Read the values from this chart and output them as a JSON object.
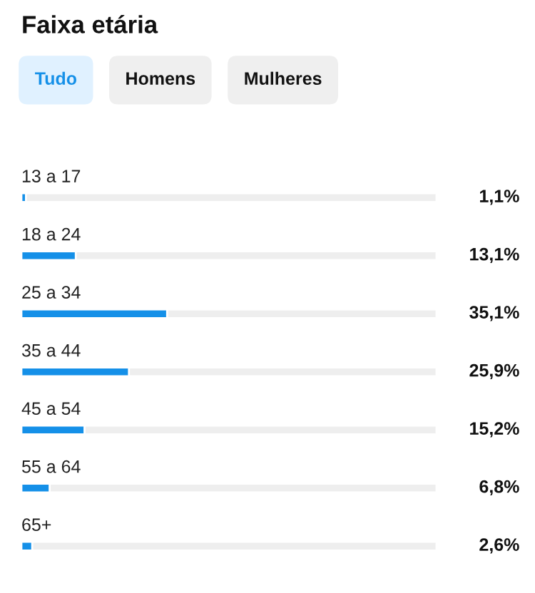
{
  "chart_data": {
    "type": "bar",
    "orientation": "horizontal",
    "title": "Faixa etária",
    "annotations": [
      "Tudo",
      "Homens",
      "Mulheres"
    ],
    "categories": [
      "13 a 17",
      "18 a 24",
      "25 a 34",
      "35 a 44",
      "45 a 54",
      "55 a 64",
      "65+"
    ],
    "values": [
      1.1,
      13.1,
      35.1,
      25.9,
      15.2,
      6.8,
      2.6
    ],
    "value_labels": [
      "1,1%",
      "13,1%",
      "35,1%",
      "25,9%",
      "15,2%",
      "6,8%",
      "2,6%"
    ],
    "color": "#1590e8",
    "xlim": [
      0,
      100
    ]
  }
}
